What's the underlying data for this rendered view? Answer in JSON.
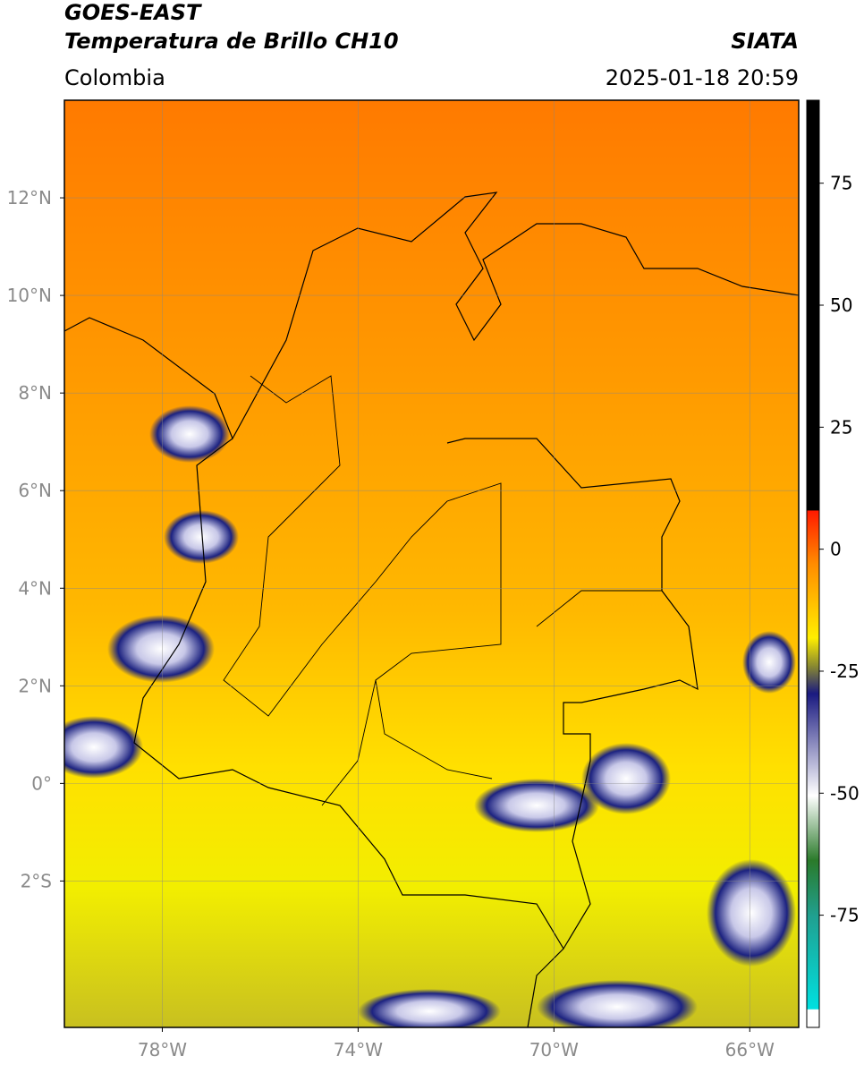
{
  "header": {
    "title_line1": "GOES-EAST",
    "title_line2": "Temperatura de Brillo CH10",
    "region": "Colombia",
    "source": "SIATA",
    "datetime": "2025-01-18 20:59"
  },
  "map": {
    "xlim": [
      -80,
      -65
    ],
    "ylim": [
      -5,
      14
    ],
    "xticks": [
      {
        "value": -78,
        "label": "78°W"
      },
      {
        "value": -74,
        "label": "74°W"
      },
      {
        "value": -70,
        "label": "70°W"
      },
      {
        "value": -66,
        "label": "66°W"
      }
    ],
    "yticks": [
      {
        "value": -2,
        "label": "2°S"
      },
      {
        "value": 0,
        "label": "0°"
      },
      {
        "value": 2,
        "label": "2°N"
      },
      {
        "value": 4,
        "label": "4°N"
      },
      {
        "value": 6,
        "label": "6°N"
      },
      {
        "value": 8,
        "label": "8°N"
      },
      {
        "value": 10,
        "label": "10°N"
      },
      {
        "value": 12,
        "label": "12°N"
      }
    ],
    "grid": true
  },
  "colorbar": {
    "lim": [
      -98,
      92
    ],
    "ticks": [
      75,
      50,
      25,
      0,
      -25,
      -50,
      -75
    ]
  }
}
